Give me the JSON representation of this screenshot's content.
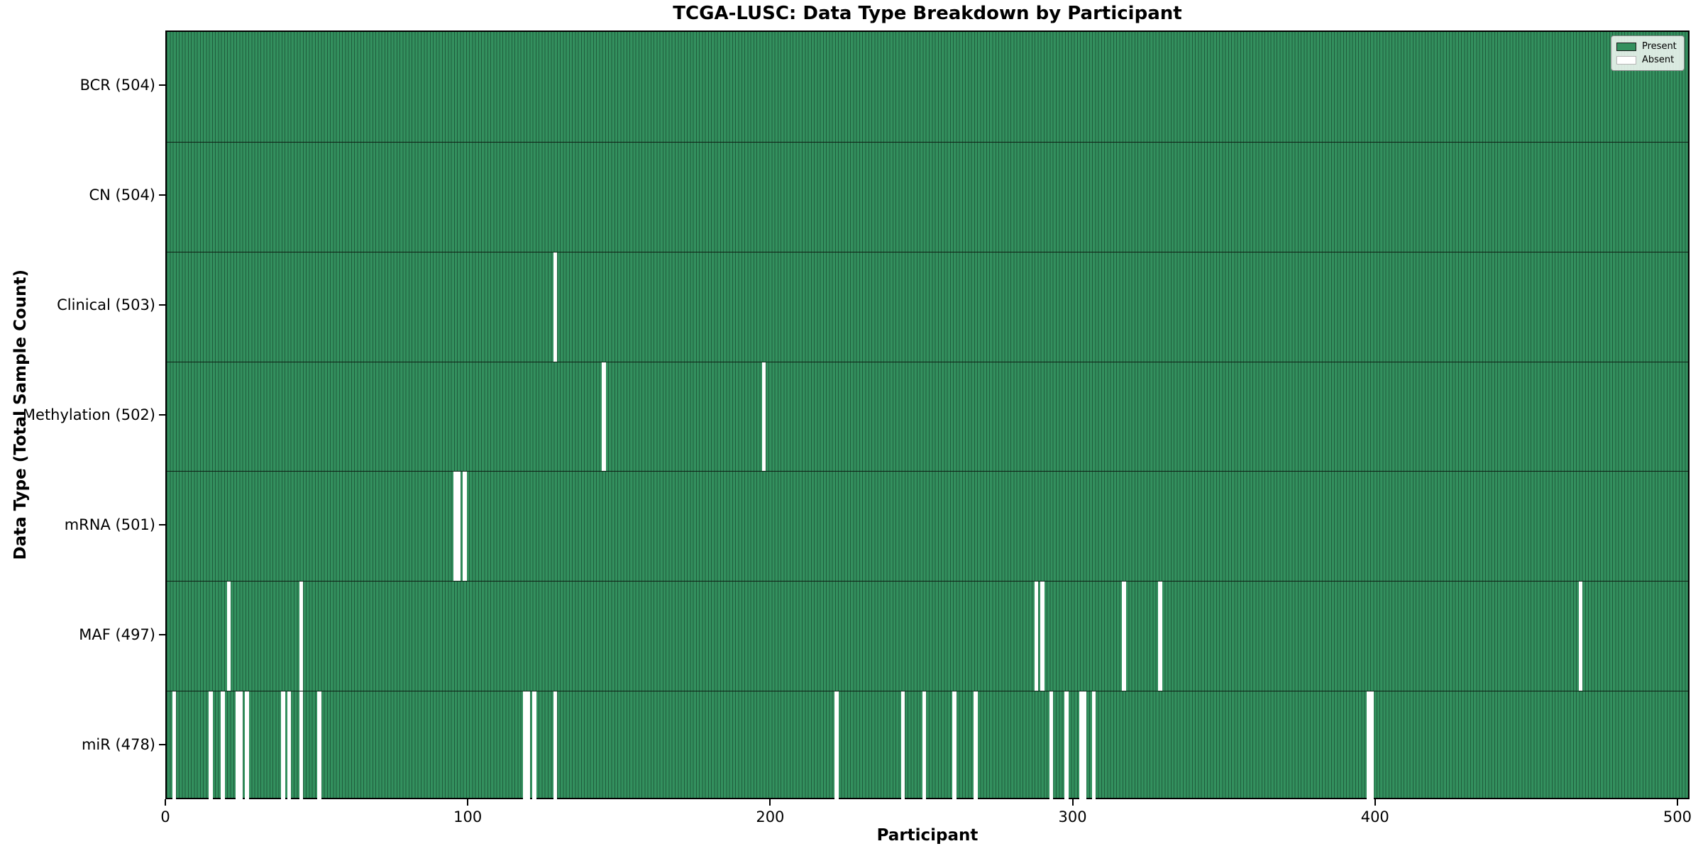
{
  "chart_data": {
    "type": "heatmap",
    "title": "TCGA-LUSC: Data Type Breakdown by Participant",
    "xlabel": "Participant",
    "ylabel": "Data Type (Total Sample Count)",
    "x_range": [
      0,
      504
    ],
    "n_participants": 504,
    "x_ticks": [
      0,
      100,
      200,
      300,
      400,
      500
    ],
    "grid": false,
    "legend_position": "upper right",
    "legend": [
      {
        "label": "Present",
        "color": "#33905e"
      },
      {
        "label": "Absent",
        "color": "#ffffff"
      }
    ],
    "colors": {
      "present_fill": "#33905e",
      "present_edge": "#1f5c3c",
      "absent_fill": "#ffffff",
      "spine": "#000000"
    },
    "rows": [
      {
        "label": "BCR (504)",
        "total": 504,
        "absent": []
      },
      {
        "label": "CN (504)",
        "total": 504,
        "absent": []
      },
      {
        "label": "Clinical (503)",
        "total": 503,
        "absent": [
          128
        ]
      },
      {
        "label": "Methylation (502)",
        "total": 502,
        "absent": [
          144,
          197
        ]
      },
      {
        "label": "mRNA (501)",
        "total": 501,
        "absent": [
          95,
          96,
          98
        ]
      },
      {
        "label": "MAF (497)",
        "total": 497,
        "absent": [
          20,
          44,
          287,
          289,
          316,
          328,
          467
        ]
      },
      {
        "label": "miR (478)",
        "total": 478,
        "absent": [
          2,
          14,
          18,
          23,
          24,
          26,
          38,
          40,
          44,
          50,
          118,
          119,
          121,
          128,
          221,
          243,
          250,
          260,
          267,
          292,
          297,
          302,
          303,
          306,
          397,
          398
        ]
      }
    ]
  }
}
